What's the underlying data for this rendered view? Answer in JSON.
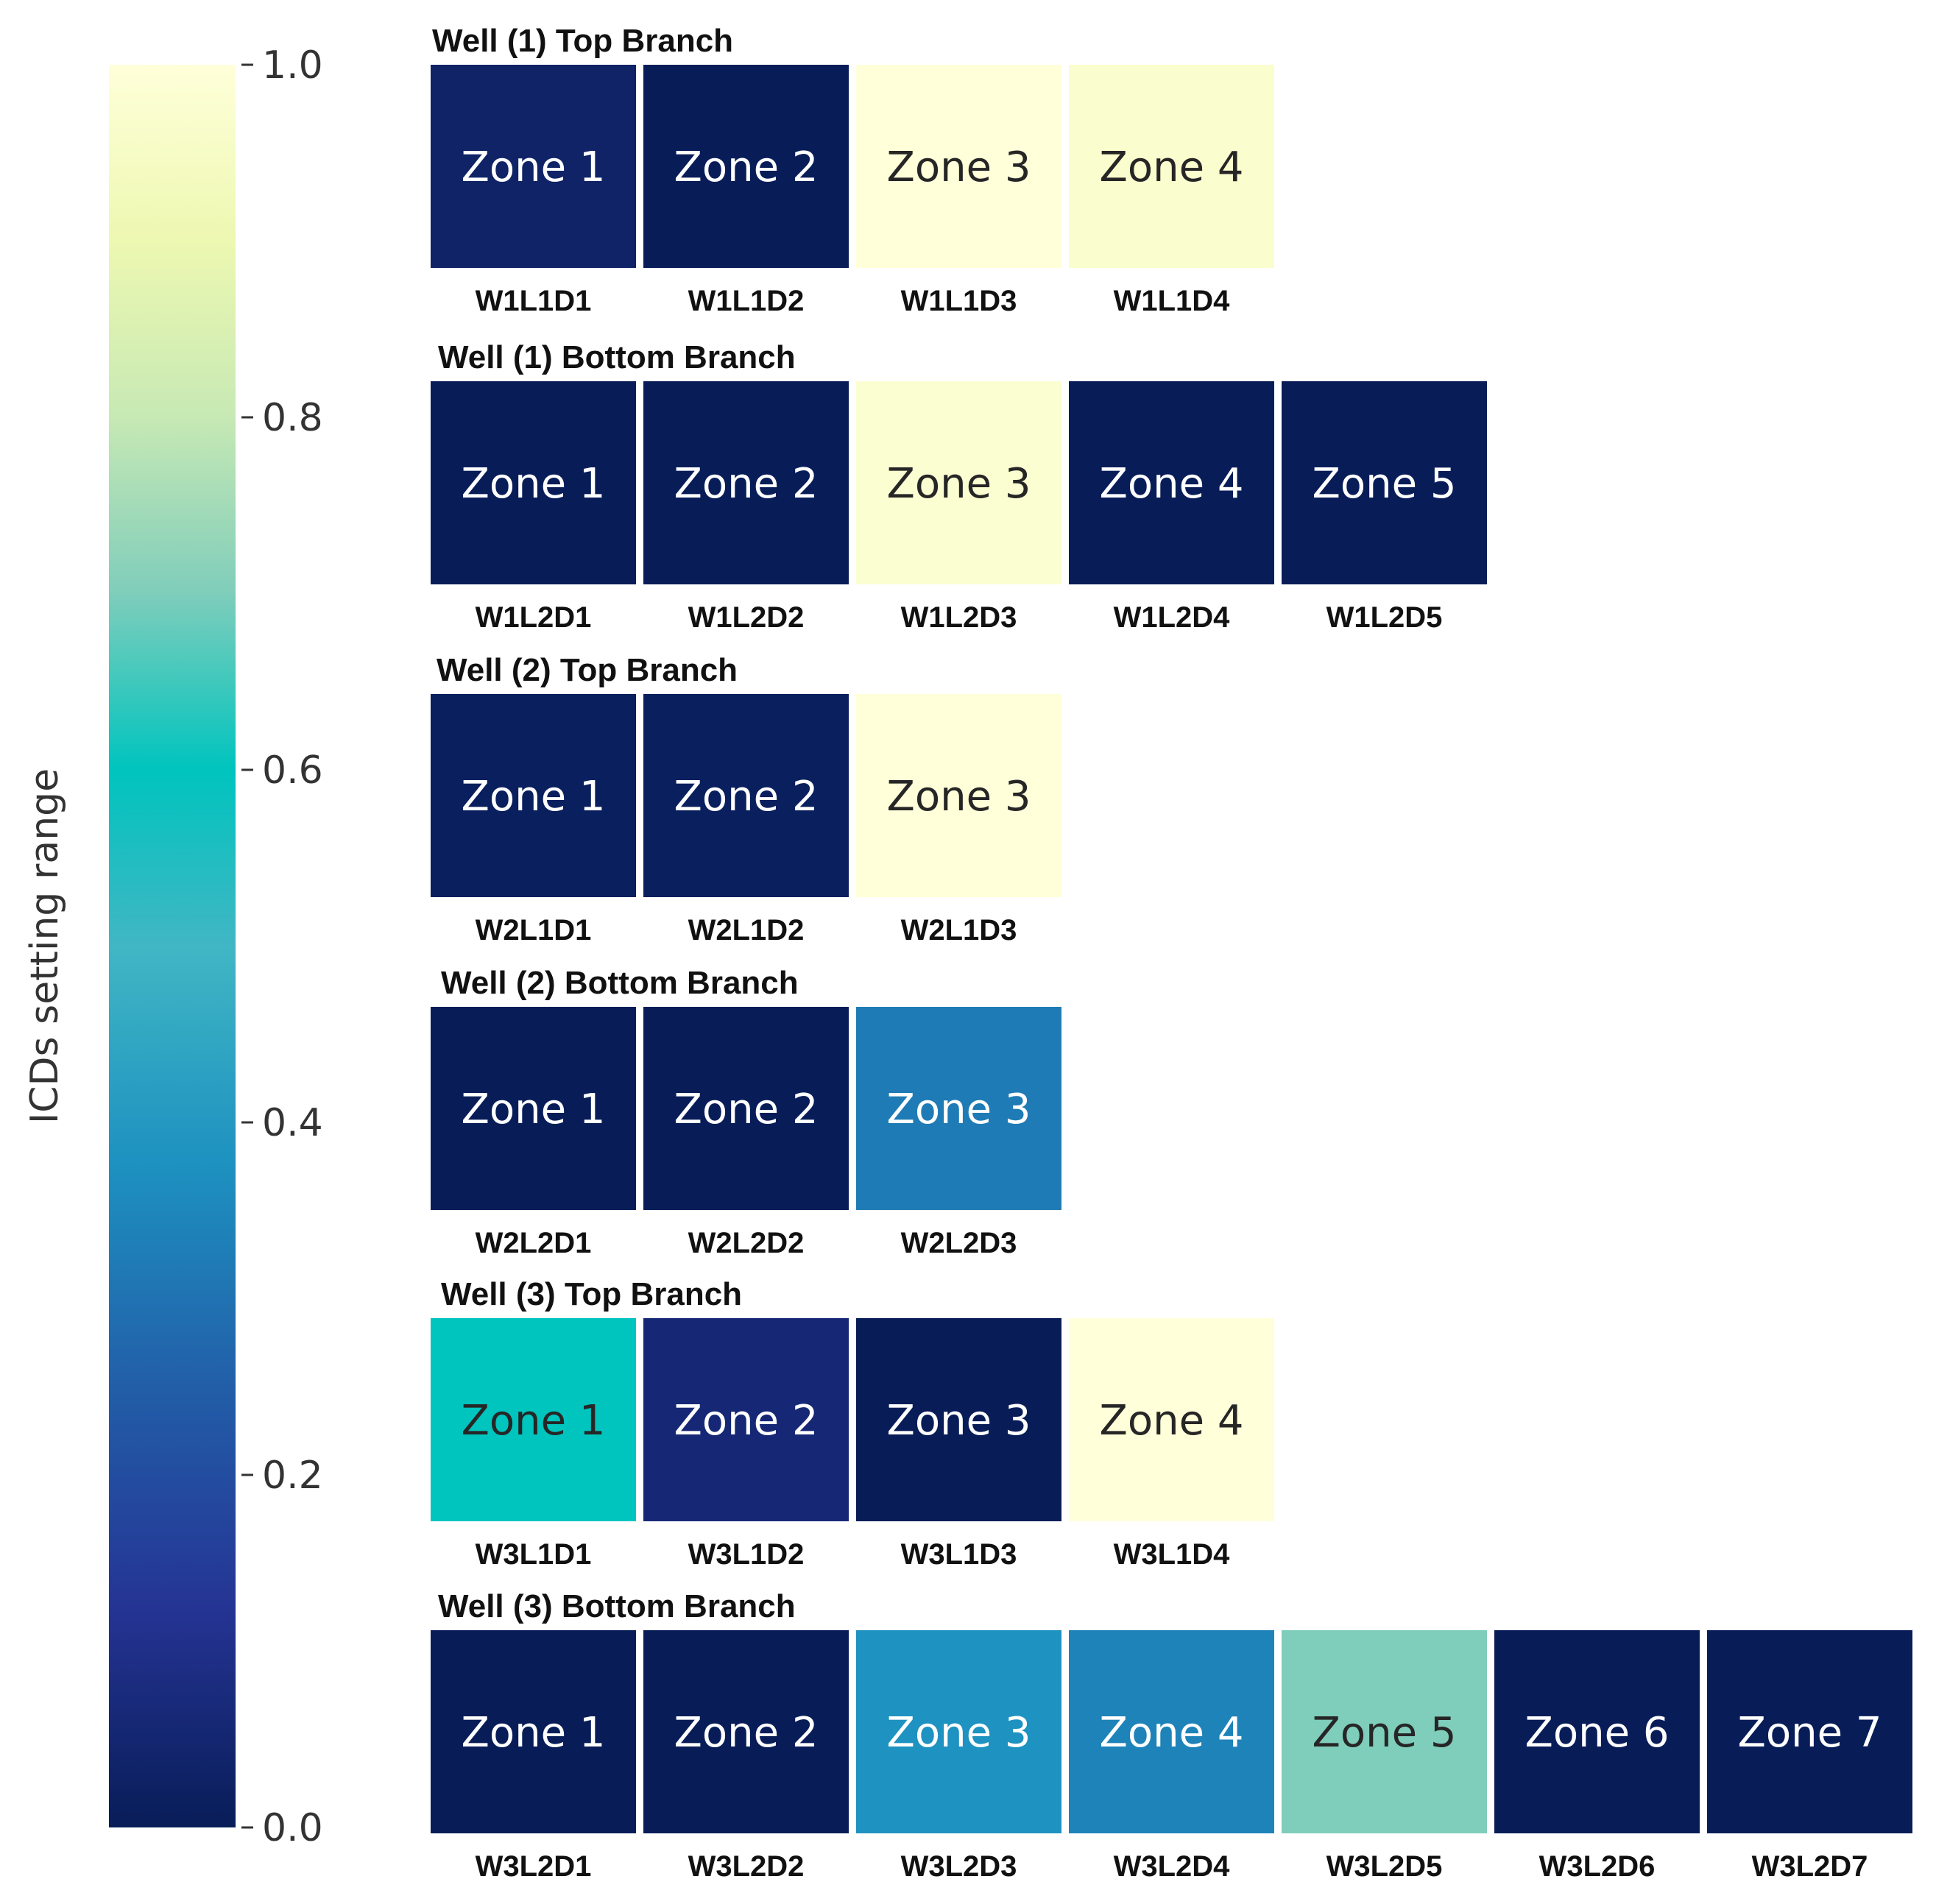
{
  "chart_data": {
    "type": "heatmap",
    "colorbar": {
      "label": "ICDs setting range",
      "range": [
        0.0,
        1.0
      ],
      "ticks": [
        0.0,
        0.2,
        0.4,
        0.6,
        0.8,
        1.0
      ],
      "tick_labels": [
        "0.0",
        "0.2",
        "0.4",
        "0.6",
        "0.8",
        "1.0"
      ],
      "colormap": "YlGnBu"
    },
    "branches": [
      {
        "title": "Well (1) Top Branch",
        "zones": [
          "Zone 1",
          "Zone 2",
          "Zone 3",
          "Zone 4"
        ],
        "devices": [
          "W1L1D1",
          "W1L1D2",
          "W1L1D3",
          "W1L1D4"
        ],
        "values": [
          0.03,
          0.0,
          1.0,
          0.97
        ]
      },
      {
        "title": "Well (1) Bottom Branch",
        "zones": [
          "Zone 1",
          "Zone 2",
          "Zone 3",
          "Zone 4",
          "Zone 5"
        ],
        "devices": [
          "W1L2D1",
          "W1L2D2",
          "W1L2D3",
          "W1L2D4",
          "W1L2D5"
        ],
        "values": [
          0.0,
          0.0,
          0.98,
          0.0,
          0.0
        ]
      },
      {
        "title": "Well (2) Top Branch",
        "zones": [
          "Zone 1",
          "Zone 2",
          "Zone 3"
        ],
        "devices": [
          "W2L1D1",
          "W2L1D2",
          "W2L1D3"
        ],
        "values": [
          0.01,
          0.01,
          1.0
        ]
      },
      {
        "title": "Well (2) Bottom Branch",
        "zones": [
          "Zone 1",
          "Zone 2",
          "Zone 3"
        ],
        "devices": [
          "W2L2D1",
          "W2L2D2",
          "W2L2D3"
        ],
        "values": [
          0.0,
          0.0,
          0.32
        ]
      },
      {
        "title": "Well (3) Top Branch",
        "zones": [
          "Zone 1",
          "Zone 2",
          "Zone 3",
          "Zone 4"
        ],
        "devices": [
          "W3L1D1",
          "W3L1D2",
          "W3L1D3",
          "W3L1D4"
        ],
        "values": [
          0.6,
          0.06,
          0.0,
          1.0
        ]
      },
      {
        "title": "Well (3) Bottom Branch",
        "zones": [
          "Zone 1",
          "Zone 2",
          "Zone 3",
          "Zone 4",
          "Zone 5",
          "Zone 6",
          "Zone 7"
        ],
        "devices": [
          "W3L2D1",
          "W3L2D2",
          "W3L2D3",
          "W3L2D4",
          "W3L2D5",
          "W3L2D6",
          "W3L2D7"
        ],
        "values": [
          0.0,
          0.0,
          0.38,
          0.34,
          0.7,
          0.0,
          0.0
        ]
      }
    ]
  }
}
